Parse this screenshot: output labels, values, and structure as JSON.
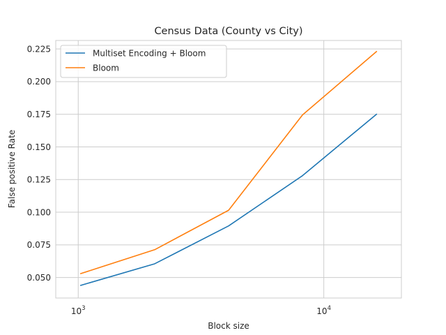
{
  "chart_data": {
    "type": "line",
    "title": "Census Data (County vs City)",
    "xlabel": "Block size",
    "ylabel": "False positive Rate",
    "x_scale": "log",
    "x": [
      1024,
      2048,
      4096,
      8192,
      16384
    ],
    "xlim": [
      810,
      20700
    ],
    "x_ticks": [
      1000,
      10000
    ],
    "x_tick_labels": [
      {
        "base": "10",
        "exp": "3"
      },
      {
        "base": "10",
        "exp": "4"
      }
    ],
    "ylim": [
      0.0343,
      0.2315
    ],
    "y_ticks": [
      0.05,
      0.075,
      0.1,
      0.125,
      0.15,
      0.175,
      0.2,
      0.225
    ],
    "y_tick_labels": [
      "0.050",
      "0.075",
      "0.100",
      "0.125",
      "0.150",
      "0.175",
      "0.200",
      "0.225"
    ],
    "grid": true,
    "legend_position": "top-left",
    "series": [
      {
        "name": "Multiset Encoding + Bloom",
        "color": "#1f77b4",
        "values": [
          0.044,
          0.0605,
          0.0895,
          0.128,
          0.175
        ]
      },
      {
        "name": "Bloom",
        "color": "#ff7f0e",
        "values": [
          0.053,
          0.0713,
          0.1015,
          0.1745,
          0.223
        ]
      }
    ]
  }
}
